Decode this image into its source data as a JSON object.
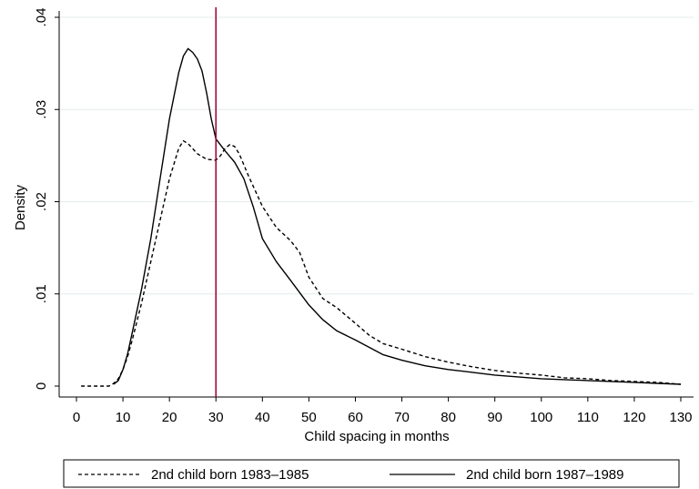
{
  "chart_data": {
    "type": "line",
    "xlabel": "Child spacing in months",
    "ylabel": "Density",
    "xlim": [
      0,
      130
    ],
    "ylim": [
      0,
      0.04
    ],
    "x_ticks": [
      "0",
      "10",
      "20",
      "30",
      "40",
      "50",
      "60",
      "70",
      "80",
      "90",
      "100",
      "110",
      "120",
      "130"
    ],
    "y_ticks": [
      "0",
      ".01",
      ".02",
      ".03",
      ".04"
    ],
    "y_tick_values": [
      0,
      0.01,
      0.02,
      0.03,
      0.04
    ],
    "grid": "horizontal",
    "legend_position": "bottom",
    "vertical_line": {
      "x": 30,
      "color": "#990033"
    },
    "series": [
      {
        "name": "2nd child born 1983–1985",
        "style": "dashed",
        "color": "#000000",
        "points": [
          [
            1,
            0
          ],
          [
            7,
            0
          ],
          [
            8,
            0.0003
          ],
          [
            9,
            0.0008
          ],
          [
            10,
            0.0018
          ],
          [
            11,
            0.0032
          ],
          [
            12,
            0.005
          ],
          [
            14,
            0.009
          ],
          [
            16,
            0.0135
          ],
          [
            18,
            0.018
          ],
          [
            20,
            0.0225
          ],
          [
            22,
            0.0258
          ],
          [
            23,
            0.0266
          ],
          [
            24,
            0.0263
          ],
          [
            26,
            0.0252
          ],
          [
            28,
            0.0246
          ],
          [
            30,
            0.0245
          ],
          [
            31,
            0.025
          ],
          [
            32,
            0.0258
          ],
          [
            33,
            0.0262
          ],
          [
            34,
            0.026
          ],
          [
            35,
            0.0252
          ],
          [
            37,
            0.0228
          ],
          [
            40,
            0.0195
          ],
          [
            43,
            0.0172
          ],
          [
            46,
            0.0158
          ],
          [
            48,
            0.0145
          ],
          [
            50,
            0.0118
          ],
          [
            53,
            0.0095
          ],
          [
            56,
            0.0085
          ],
          [
            60,
            0.0068
          ],
          [
            63,
            0.0055
          ],
          [
            66,
            0.0046
          ],
          [
            70,
            0.004
          ],
          [
            75,
            0.0032
          ],
          [
            80,
            0.0026
          ],
          [
            85,
            0.0021
          ],
          [
            90,
            0.0017
          ],
          [
            95,
            0.0014
          ],
          [
            100,
            0.0012
          ],
          [
            105,
            0.0009
          ],
          [
            110,
            0.0008
          ],
          [
            115,
            0.0006
          ],
          [
            120,
            0.0005
          ],
          [
            125,
            0.0004
          ],
          [
            130,
            0.0002
          ]
        ]
      },
      {
        "name": "2nd child born 1987–1989",
        "style": "solid",
        "color": "#000000",
        "points": [
          [
            8,
            0.0002
          ],
          [
            9,
            0.0006
          ],
          [
            10,
            0.0018
          ],
          [
            11,
            0.0035
          ],
          [
            12,
            0.0058
          ],
          [
            14,
            0.0105
          ],
          [
            16,
            0.016
          ],
          [
            18,
            0.0225
          ],
          [
            20,
            0.029
          ],
          [
            22,
            0.034
          ],
          [
            23,
            0.0358
          ],
          [
            24,
            0.0366
          ],
          [
            25,
            0.0362
          ],
          [
            26,
            0.0355
          ],
          [
            27,
            0.0342
          ],
          [
            28,
            0.0318
          ],
          [
            29,
            0.029
          ],
          [
            30,
            0.0268
          ],
          [
            32,
            0.0255
          ],
          [
            34,
            0.0243
          ],
          [
            36,
            0.0225
          ],
          [
            38,
            0.0195
          ],
          [
            40,
            0.016
          ],
          [
            43,
            0.0135
          ],
          [
            46,
            0.0115
          ],
          [
            50,
            0.0088
          ],
          [
            53,
            0.0072
          ],
          [
            56,
            0.006
          ],
          [
            60,
            0.005
          ],
          [
            63,
            0.0042
          ],
          [
            66,
            0.0034
          ],
          [
            70,
            0.0028
          ],
          [
            75,
            0.0022
          ],
          [
            80,
            0.0018
          ],
          [
            85,
            0.0015
          ],
          [
            90,
            0.0012
          ],
          [
            95,
            0.001
          ],
          [
            100,
            0.0008
          ],
          [
            105,
            0.0007
          ],
          [
            110,
            0.0006
          ],
          [
            115,
            0.0005
          ],
          [
            120,
            0.0004
          ],
          [
            125,
            0.0003
          ],
          [
            130,
            0.0002
          ]
        ]
      }
    ]
  }
}
